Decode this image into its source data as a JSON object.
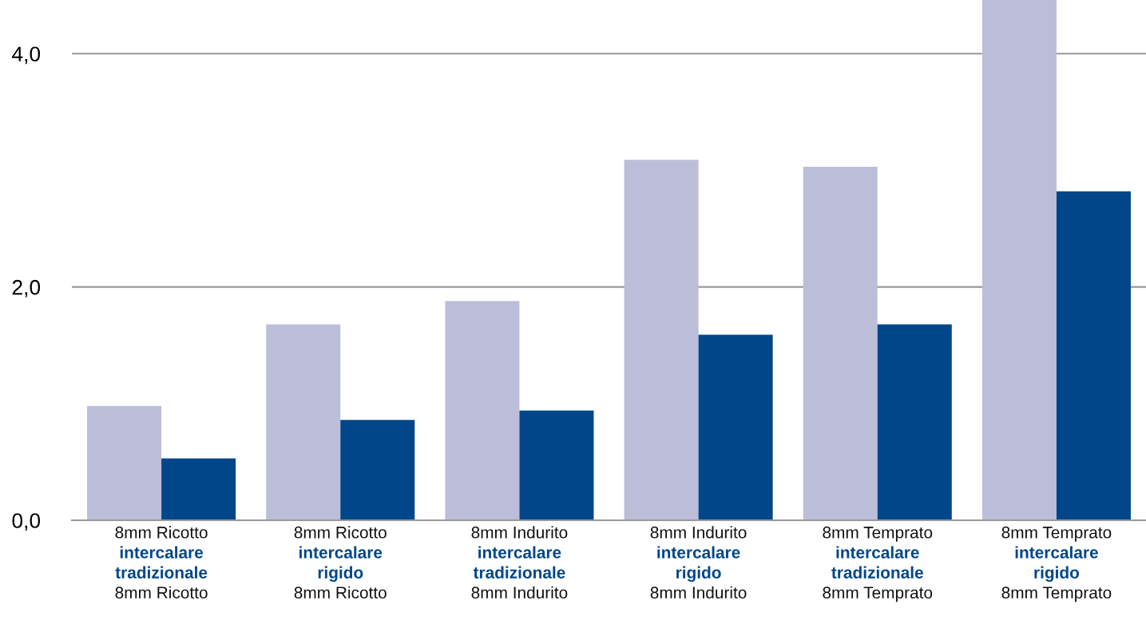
{
  "chart_data": {
    "type": "bar",
    "categories": [
      "8mm Ricotto\nintercalare\ntradizionale\n8mm Ricotto",
      "8mm Ricotto\nintercalare\nrigido\n8mm Ricotto",
      "8mm Indurito\nintercalare\ntradizionale\n8mm Indurito",
      "8mm Indurito\nintercalare\nrigido\n8mm Indurito",
      "8mm Temprato\nintercalare\ntradizionale\n8mm Temprato",
      "8mm Temprato\nintercalare\nrigido\n8mm Temprato"
    ],
    "series": [
      {
        "color": "#bcbed9",
        "values": [
          0.98,
          1.68,
          1.88,
          3.09,
          3.03,
          4.46
        ]
      },
      {
        "color": "#004689",
        "values": [
          0.53,
          0.86,
          0.94,
          1.59,
          1.68,
          2.82
        ]
      }
    ],
    "ylim": [
      0,
      4.46
    ],
    "yticks": [
      {
        "value": 0,
        "label": "0,0"
      },
      {
        "value": 2,
        "label": "2,0"
      },
      {
        "value": 4,
        "label": "4,0"
      }
    ],
    "grid": "y",
    "legend": false
  }
}
